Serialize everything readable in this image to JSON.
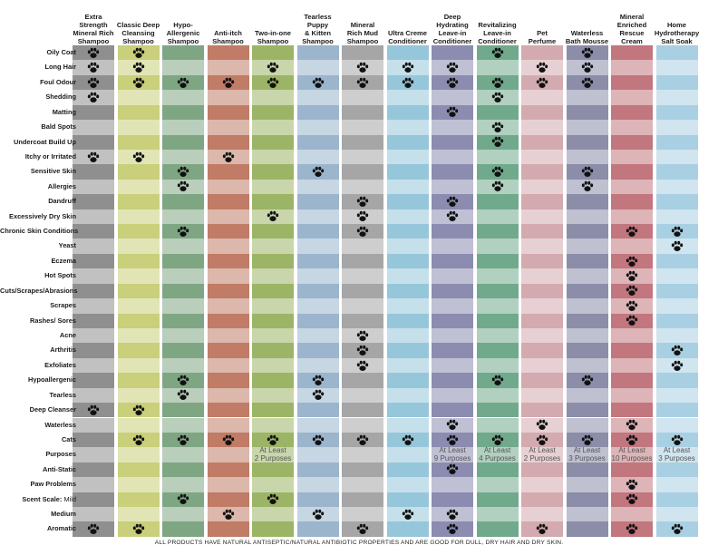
{
  "columns": [
    {
      "label": "Extra\nStrength\nMineral Rich\nShampoo",
      "color": "#8f8f8f"
    },
    {
      "label": "Classic Deep\nCleansing\nShampoo",
      "color": "#c9cf7a"
    },
    {
      "label": "Hypo-\nAllergenic\nShampoo",
      "color": "#7fa683"
    },
    {
      "label": "Anti-itch\nShampoo",
      "color": "#c07c66"
    },
    {
      "label": "Two-in-one\nShampoo",
      "color": "#9cb466"
    },
    {
      "label": "Tearless\nPuppy\n& Kitten\nShampoo",
      "color": "#9ab5cc"
    },
    {
      "label": "Mineral\nRich Mud\nShampoo",
      "color": "#a6a6a6"
    },
    {
      "label": "Ultra Creme\nConditioner",
      "color": "#96c6da"
    },
    {
      "label": "Deep\nHydrating\nLeave-in\nConditioner",
      "color": "#8c8cb1"
    },
    {
      "label": "Revitalizing\nLeave-in\nConditioner",
      "color": "#71a98c"
    },
    {
      "label": "Pet\nPerfume",
      "color": "#d3aaaf"
    },
    {
      "label": "Waterless\nBath Mousse",
      "color": "#8b8da9"
    },
    {
      "label": "Mineral\nEnriched\nRescue Cream",
      "color": "#c2767e"
    },
    {
      "label": "Home\nHydrotherapy\nSalt Soak",
      "color": "#a9cfe2"
    }
  ],
  "rows": [
    {
      "label": "Oily Coat",
      "marks": [
        0,
        1,
        9,
        11
      ]
    },
    {
      "label": "Long Hair",
      "marks": [
        0,
        1,
        4,
        6,
        7,
        8,
        10,
        11
      ]
    },
    {
      "label": "Foul Odour",
      "marks": [
        0,
        1,
        2,
        3,
        4,
        5,
        6,
        7,
        8,
        9,
        10,
        11
      ]
    },
    {
      "label": "Shedding",
      "marks": [
        0,
        9
      ]
    },
    {
      "label": "Matting",
      "marks": [
        8
      ]
    },
    {
      "label": "Bald Spots",
      "marks": [
        9
      ]
    },
    {
      "label": "Undercoat Build Up",
      "marks": [
        9
      ]
    },
    {
      "label": "Itchy or Irritated",
      "marks": [
        0,
        1,
        3
      ]
    },
    {
      "label": "Sensitive Skin",
      "marks": [
        2,
        5,
        9,
        11
      ]
    },
    {
      "label": "Allergies",
      "marks": [
        2,
        9,
        11
      ]
    },
    {
      "label": "Dandruff",
      "marks": [
        6,
        8
      ]
    },
    {
      "label": "Excessively Dry Skin",
      "marks": [
        4,
        6,
        8
      ]
    },
    {
      "label": "Chronic Skin Conditions",
      "marks": [
        2,
        6,
        12,
        13
      ]
    },
    {
      "label": "Yeast",
      "marks": [
        13
      ]
    },
    {
      "label": "Eczema",
      "marks": [
        12
      ]
    },
    {
      "label": "Hot Spots",
      "marks": [
        12
      ]
    },
    {
      "label": "Cuts/Scrapes/Abrasions",
      "marks": [
        12
      ]
    },
    {
      "label": "Scrapes",
      "marks": [
        12
      ]
    },
    {
      "label": "Rashes/ Sores",
      "marks": [
        12
      ]
    },
    {
      "label": "Acne",
      "marks": [
        6
      ]
    },
    {
      "label": "Arthritis",
      "marks": [
        6,
        13
      ]
    },
    {
      "label": "Exfoliates",
      "marks": [
        6,
        13
      ]
    },
    {
      "label": "Hypoallergenic",
      "marks": [
        2,
        5,
        9,
        11
      ]
    },
    {
      "label": "Tearless",
      "marks": [
        2,
        5
      ]
    },
    {
      "label": "Deep Cleanser",
      "marks": [
        0,
        1
      ]
    },
    {
      "label": "Waterless",
      "marks": [
        8,
        10,
        12
      ]
    },
    {
      "label": "Cats",
      "marks": [
        1,
        2,
        3,
        4,
        5,
        6,
        7,
        8,
        9,
        10,
        11,
        12,
        13
      ]
    },
    {
      "label": "Purposes",
      "marks": [],
      "purposes": [
        {
          "col": 4,
          "text": "At Least\n2 Purposes"
        },
        {
          "col": 8,
          "text": "At Least\n9 Purposes"
        },
        {
          "col": 9,
          "text": "At Least\n4 Purposes"
        },
        {
          "col": 10,
          "text": "At Least\n2 Purposes"
        },
        {
          "col": 11,
          "text": "At Least\n3 Purposes"
        },
        {
          "col": 12,
          "text": "At Least\n10 Purposes"
        },
        {
          "col": 13,
          "text": "At Least\n3 Purposes"
        }
      ]
    },
    {
      "label": "Anti-Static",
      "marks": [
        8
      ]
    },
    {
      "label": "Paw Problems",
      "marks": [
        12
      ]
    },
    {
      "label": "Scent Scale:",
      "label_extra": "Mild",
      "marks": [
        2,
        4,
        12
      ]
    },
    {
      "label": "Medium",
      "marks": [
        3,
        5,
        7,
        8
      ]
    },
    {
      "label": "Aromatic",
      "marks": [
        0,
        1,
        6,
        8,
        10,
        12,
        13
      ]
    }
  ],
  "paw_icon": "paw-print-icon",
  "paw_color": "#111111",
  "footnote": "ALL PRODUCTS HAVE NATURAL ANTISEPTIC/NATURAL ANTIBIOTIC PROPERTIES AND ARE GOOD FOR DULL, DRY HAIR AND DRY SKIN."
}
